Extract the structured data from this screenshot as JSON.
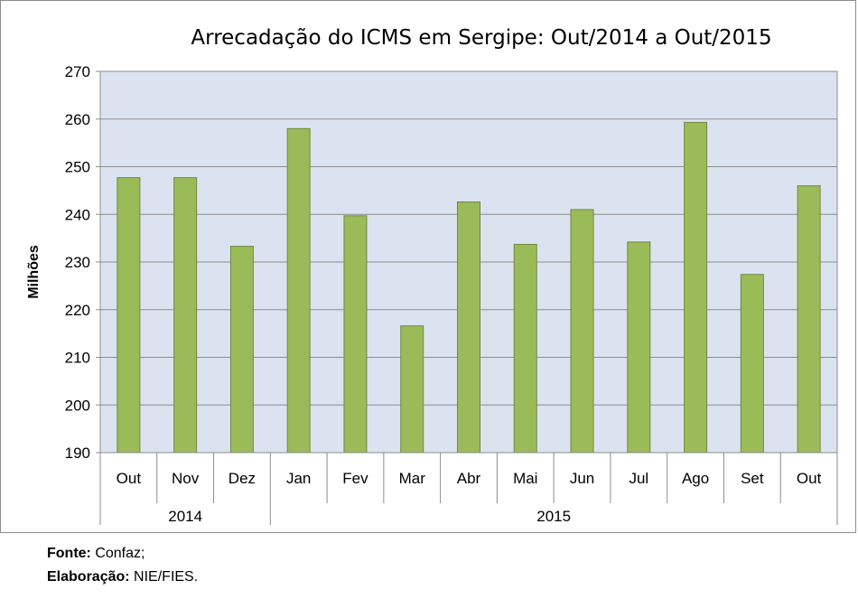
{
  "chart_data": {
    "type": "bar",
    "title": "Arrecadação do ICMS em Sergipe: Out/2014 a Out/2015",
    "xlabel": "",
    "ylabel": "Milhões",
    "ylim": [
      190,
      270
    ],
    "yticks": [
      190,
      200,
      210,
      220,
      230,
      240,
      250,
      260,
      270
    ],
    "grid": true,
    "legend": "none",
    "categories": [
      "Out",
      "Nov",
      "Dez",
      "Jan",
      "Fev",
      "Mar",
      "Abr",
      "Mai",
      "Jun",
      "Jul",
      "Ago",
      "Set",
      "Out"
    ],
    "groups": [
      {
        "label": "2014",
        "count": 3
      },
      {
        "label": "2015",
        "count": 10
      }
    ],
    "values": [
      247.7,
      247.7,
      233.3,
      258.0,
      239.7,
      216.6,
      242.6,
      233.7,
      241.0,
      234.2,
      259.3,
      227.4,
      246.0
    ],
    "colors": {
      "bar_fill": "#9bbb59",
      "bar_stroke": "#71893f",
      "plot_bg": "#dce3f0",
      "grid": "#8c8c8c",
      "axis": "#8c8c8c"
    }
  },
  "footer": {
    "source_label": "Fonte:",
    "source_value": "Confaz;",
    "elab_label": "Elaboração:",
    "elab_value": "NIE/FIES."
  }
}
